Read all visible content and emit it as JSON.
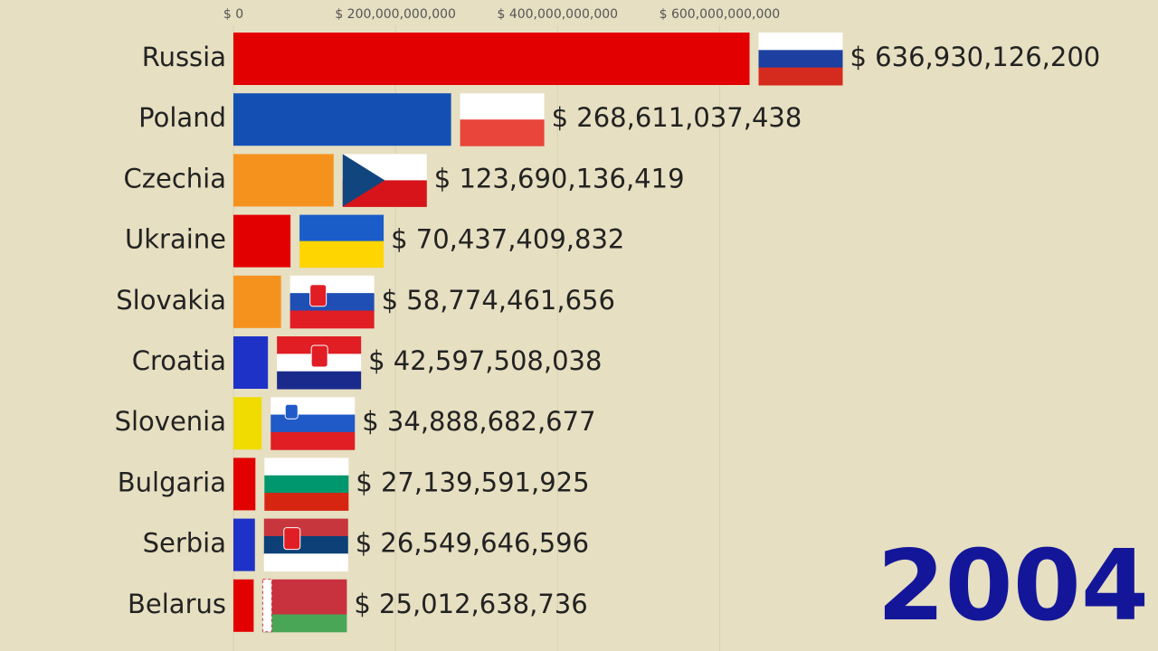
{
  "chart_data": {
    "type": "hbar",
    "categories": [
      "Russia",
      "Poland",
      "Czechia",
      "Ukraine",
      "Slovakia",
      "Croatia",
      "Slovenia",
      "Bulgaria",
      "Serbia",
      "Belarus"
    ],
    "values": [
      636930126200,
      268611037438,
      123690136419,
      70437409832,
      58774461656,
      42597508038,
      34888682677,
      27139591925,
      26549646596,
      25012638736
    ],
    "value_labels": [
      "$ 636,930,126,200",
      "$ 268,611,037,438",
      "$ 123,690,136,419",
      "$ 70,437,409,832",
      "$ 58,774,461,656",
      "$ 42,597,508,038",
      "$ 34,888,682,677",
      "$ 27,139,591,925",
      "$ 26,549,646,596",
      "$ 25,012,638,736"
    ],
    "colors": [
      "#e30000",
      "#1450b4",
      "#f5921e",
      "#e30000",
      "#f5921e",
      "#1e32c8",
      "#f0dc00",
      "#e30000",
      "#1e32c8",
      "#e30000"
    ],
    "xlim": [
      0,
      700000000000
    ],
    "xticks": [
      {
        "value": 0,
        "label": "$ 0"
      },
      {
        "value": 200000000000,
        "label": "$ 200,000,000,000"
      },
      {
        "value": 400000000000,
        "label": "$ 400,000,000,000"
      },
      {
        "value": 600000000000,
        "label": "$ 600,000,000,000"
      }
    ],
    "grid": true,
    "annotation": "2004"
  }
}
